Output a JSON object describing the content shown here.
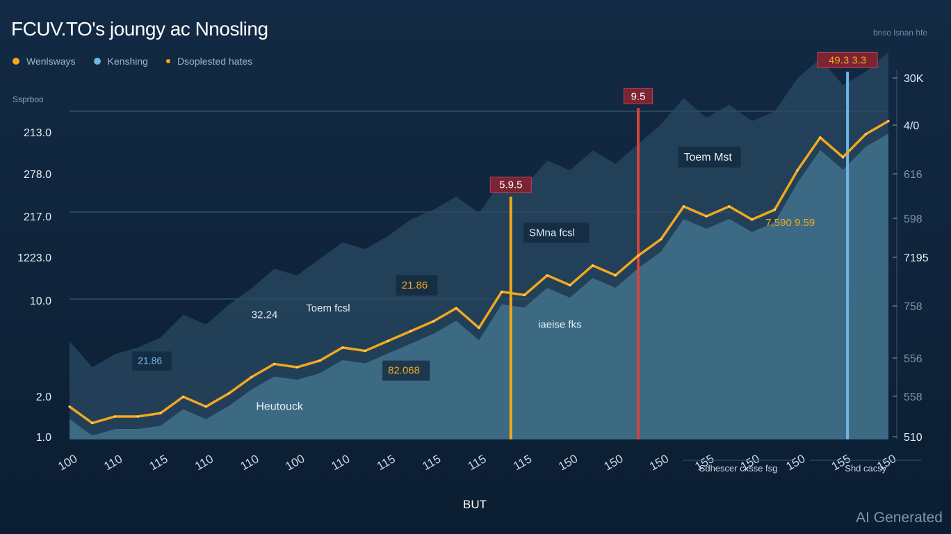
{
  "chart_data": {
    "type": "area",
    "title": "FCUV.TO's joungy ac Nnosling",
    "top_right_label": "bnso lsnan hfe",
    "unit_label": "Ssprboo",
    "xlabel": "BUT",
    "legend": [
      {
        "label": "Wenlsways",
        "color": "#f2a81d"
      },
      {
        "label": "Kenshing",
        "color": "#6fb6e6"
      },
      {
        "label": "Dsoplested hates",
        "color": "#f2a81d"
      }
    ],
    "left_ticks": [
      "213.0",
      "278.0",
      "217.0",
      "1223.0",
      "10.0",
      "",
      "2.0",
      "1.0"
    ],
    "right_ticks": [
      "30K",
      "4/0",
      "616",
      "598",
      "7195",
      "758",
      "556",
      "558",
      "510"
    ],
    "x_ticks": [
      "100",
      "110",
      "115",
      "110",
      "110",
      "100",
      "110",
      "115",
      "115",
      "115",
      "115",
      "150",
      "150",
      "150",
      "155",
      "150",
      "150",
      "155",
      "150"
    ],
    "x_range": [
      0,
      18
    ],
    "y_range": [
      0,
      100
    ],
    "series": [
      {
        "name": "Wenlsways",
        "x": [
          0,
          0.5,
          1,
          1.5,
          2,
          2.5,
          3,
          3.5,
          4,
          4.5,
          5,
          5.5,
          6,
          6.5,
          7,
          7.5,
          8,
          8.5,
          9,
          9.5,
          10,
          10.5,
          11,
          11.5,
          12,
          12.5,
          13,
          13.5,
          14,
          14.5,
          15,
          15.5,
          16,
          16.5,
          17,
          17.5,
          18
        ],
        "values": [
          10,
          5,
          7,
          7,
          8,
          13,
          10,
          14,
          19,
          23,
          22,
          24,
          28,
          27,
          30,
          33,
          36,
          40,
          34,
          45,
          44,
          50,
          47,
          53,
          50,
          56,
          61,
          71,
          68,
          71,
          67,
          70,
          82,
          92,
          86,
          93,
          97
        ]
      }
    ],
    "ridge": [
      30,
      22,
      26,
      28,
      31,
      38,
      35,
      41,
      46,
      52,
      50,
      55,
      60,
      58,
      62,
      67,
      70,
      74,
      69,
      79,
      77,
      85,
      82,
      88,
      84,
      90,
      96,
      104,
      98,
      102,
      97,
      100,
      110,
      116,
      108,
      112,
      118
    ],
    "markers": [
      {
        "label": "5.9.5",
        "x": 9.7,
        "y": 74,
        "color": "#f2a81d",
        "tag_color": "#7a2434"
      },
      {
        "label": "9.5",
        "x": 12.5,
        "y": 101,
        "color": "#d8443c",
        "tag_color": "#7a2434"
      },
      {
        "label": "49.3 3.3",
        "x": 17.1,
        "y": 112,
        "color": "#6fb6e6",
        "tag_color": "#7a2434",
        "tag_text_color": "#f2a81d"
      }
    ],
    "annotations": [
      {
        "text": "Heutouck",
        "x": 4.1,
        "y": 9,
        "color": "#e6edf5",
        "size": 16
      },
      {
        "text": "21.86",
        "x": 1.5,
        "y": 23,
        "color": "#6fb6e6",
        "size": 14,
        "box": true
      },
      {
        "text": "32.24",
        "x": 4.0,
        "y": 37,
        "color": "#e6edf5",
        "size": 15
      },
      {
        "text": "Toem fcsl",
        "x": 5.2,
        "y": 39,
        "color": "#e6edf5",
        "size": 15
      },
      {
        "text": "21.86",
        "x": 7.3,
        "y": 46,
        "color": "#f2a81d",
        "size": 15,
        "box": true
      },
      {
        "text": "82.068",
        "x": 7.0,
        "y": 20,
        "color": "#f2a81d",
        "size": 15,
        "box": true
      },
      {
        "text": "SMna fcsl",
        "x": 10.1,
        "y": 62,
        "color": "#e6edf5",
        "size": 15,
        "box": true
      },
      {
        "text": "iaeise fks",
        "x": 10.3,
        "y": 34,
        "color": "#e6edf5",
        "size": 15
      },
      {
        "text": "Toem Mst",
        "x": 13.5,
        "y": 85,
        "color": "#e6edf5",
        "size": 16,
        "box": true
      },
      {
        "text": "7,590 9.59",
        "x": 15.3,
        "y": 65,
        "color": "#f2a81d",
        "size": 15
      }
    ],
    "bottom_notes": [
      {
        "text": "Sdhescer cxsse fsg",
        "x": 14.7
      },
      {
        "text": "Shd cacsy",
        "x": 17.5
      }
    ],
    "grid": true
  },
  "watermark": "AI Generated"
}
